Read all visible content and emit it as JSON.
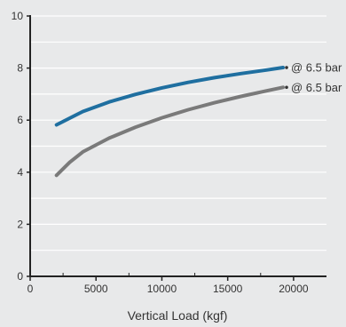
{
  "chart_data": {
    "type": "line",
    "title": "",
    "xlabel": "Vertical Load (kgf)",
    "ylabel": "",
    "xlim": [
      0,
      22500
    ],
    "ylim": [
      0,
      10
    ],
    "x_ticks": [
      0,
      5000,
      10000,
      15000,
      20000
    ],
    "x_minor_ticks": [
      2500,
      7500,
      12500,
      17500
    ],
    "y_ticks": [
      0,
      2,
      4,
      6,
      8,
      10
    ],
    "grid": true,
    "legend": "none",
    "series": [
      {
        "label": "@ 6.5 bar",
        "color": "#1f6fa0",
        "x": [
          2000,
          4000,
          6000,
          8000,
          10000,
          12000,
          14000,
          16000,
          18000,
          19200
        ],
        "y": [
          5.82,
          6.33,
          6.7,
          6.99,
          7.24,
          7.45,
          7.63,
          7.79,
          7.93,
          8.02
        ]
      },
      {
        "label": "@ 6.5 bar",
        "color": "#7a7a7a",
        "x": [
          2000,
          3000,
          4000,
          6000,
          8000,
          10000,
          12000,
          14000,
          16000,
          18000,
          19200
        ],
        "y": [
          3.88,
          4.38,
          4.78,
          5.31,
          5.73,
          6.09,
          6.4,
          6.67,
          6.91,
          7.13,
          7.26
        ]
      }
    ]
  }
}
